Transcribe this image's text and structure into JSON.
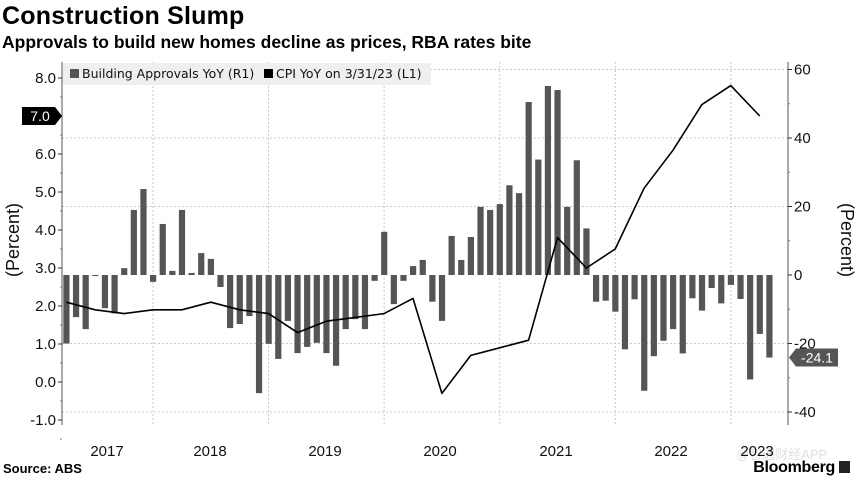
{
  "header": {
    "title": "Construction Slump",
    "subtitle": "Approvals to build new homes decline as prices, RBA rates bite"
  },
  "footer": {
    "source": "Source: ABS",
    "logo": "Bloomberg",
    "watermark": "@智通财经APP"
  },
  "chart_data": {
    "type": "bar+line",
    "title": "Construction Slump",
    "subtitle": "Approvals to build new homes decline as prices, RBA rates bite",
    "legend_placement": "top-left",
    "grid": true,
    "left_axis": {
      "label": "(Percent)",
      "range": [
        -1.0,
        8.0
      ],
      "ticks": [
        "8.0",
        "7.0",
        "6.0",
        "5.0",
        "4.0",
        "3.0",
        "2.0",
        "1.0",
        "0.0",
        "-1.0"
      ],
      "tick_values": [
        8,
        7,
        6,
        5,
        4,
        3,
        2,
        1,
        0,
        -1
      ]
    },
    "right_axis": {
      "label": "(Percent)",
      "range": [
        -40,
        60
      ],
      "ticks": [
        "60",
        "40",
        "20",
        "0",
        "-20",
        "-40"
      ],
      "tick_values": [
        60,
        40,
        20,
        0,
        -20,
        -40
      ]
    },
    "x_axis": {
      "tick_labels": [
        "2017",
        "2018",
        "2019",
        "2020",
        "2021",
        "2022",
        "2023"
      ]
    },
    "colors": {
      "bars": "#555555",
      "line": "#000000",
      "last_value_left_tag": "#000000",
      "last_value_right_tag": "#555555",
      "legend_bg": "#efefef"
    },
    "series": [
      {
        "name": "Building Approvals YoY (R1)",
        "type": "bar",
        "axis": "right",
        "last_value_label": "-24.1",
        "x": [
          "2017-03",
          "2017-04",
          "2017-05",
          "2017-06",
          "2017-07",
          "2017-08",
          "2017-09",
          "2017-10",
          "2017-11",
          "2017-12",
          "2018-01",
          "2018-02",
          "2018-03",
          "2018-04",
          "2018-05",
          "2018-06",
          "2018-07",
          "2018-08",
          "2018-09",
          "2018-10",
          "2018-11",
          "2018-12",
          "2019-01",
          "2019-02",
          "2019-03",
          "2019-04",
          "2019-05",
          "2019-06",
          "2019-07",
          "2019-08",
          "2019-09",
          "2019-10",
          "2019-11",
          "2019-12",
          "2020-01",
          "2020-02",
          "2020-03",
          "2020-04",
          "2020-05",
          "2020-06",
          "2020-07",
          "2020-08",
          "2020-09",
          "2020-10",
          "2020-11",
          "2020-12",
          "2021-01",
          "2021-02",
          "2021-03",
          "2021-04",
          "2021-05",
          "2021-06",
          "2021-07",
          "2021-08",
          "2021-09",
          "2021-10",
          "2021-11",
          "2021-12",
          "2022-01",
          "2022-02",
          "2022-03",
          "2022-04",
          "2022-05",
          "2022-06",
          "2022-07",
          "2022-08",
          "2022-09",
          "2022-10",
          "2022-11",
          "2022-12",
          "2023-01",
          "2023-02",
          "2023-03",
          "2023-04"
        ],
        "values": [
          -20.0,
          -12.3,
          -15.8,
          -0.3,
          -9.7,
          -11.2,
          2.0,
          19.0,
          25.1,
          -2.0,
          14.9,
          1.2,
          19.0,
          0.6,
          6.4,
          4.7,
          -3.5,
          -15.5,
          -14.3,
          -12.0,
          -34.5,
          -20.1,
          -24.5,
          -13.4,
          -22.8,
          -21.0,
          -19.8,
          -22.8,
          -26.5,
          -15.8,
          -12.9,
          -15.8,
          -1.7,
          12.6,
          -8.5,
          -1.7,
          2.6,
          4.4,
          -7.8,
          -13.4,
          11.4,
          4.4,
          11.1,
          19.9,
          19.0,
          20.7,
          26.2,
          23.9,
          50.5,
          33.7,
          55.2,
          54.0,
          19.9,
          33.5,
          13.6,
          -7.8,
          -7.5,
          -10.7,
          -21.7,
          -7.1,
          -33.8,
          -23.7,
          -19.2,
          -15.8,
          -22.9,
          -6.8,
          -10.4,
          -3.8,
          -8.3,
          -2.9,
          -7.0,
          -30.5,
          -17.2,
          -24.1
        ]
      },
      {
        "name": "CPI YoY on 3/31/23 (L1)",
        "type": "line",
        "axis": "left",
        "last_value_label": "7.0",
        "x": [
          "2017-03",
          "2017-06",
          "2017-09",
          "2017-12",
          "2018-03",
          "2018-06",
          "2018-09",
          "2018-12",
          "2019-03",
          "2019-06",
          "2019-09",
          "2019-12",
          "2020-03",
          "2020-06",
          "2020-09",
          "2020-12",
          "2021-03",
          "2021-06",
          "2021-09",
          "2021-12",
          "2022-03",
          "2022-06",
          "2022-09",
          "2022-12",
          "2023-03"
        ],
        "values": [
          2.1,
          1.9,
          1.8,
          1.9,
          1.9,
          2.1,
          1.9,
          1.8,
          1.3,
          1.6,
          1.7,
          1.8,
          2.2,
          -0.3,
          0.7,
          0.9,
          1.1,
          3.8,
          3.0,
          3.5,
          5.1,
          6.1,
          7.3,
          7.8,
          7.0
        ]
      }
    ]
  }
}
